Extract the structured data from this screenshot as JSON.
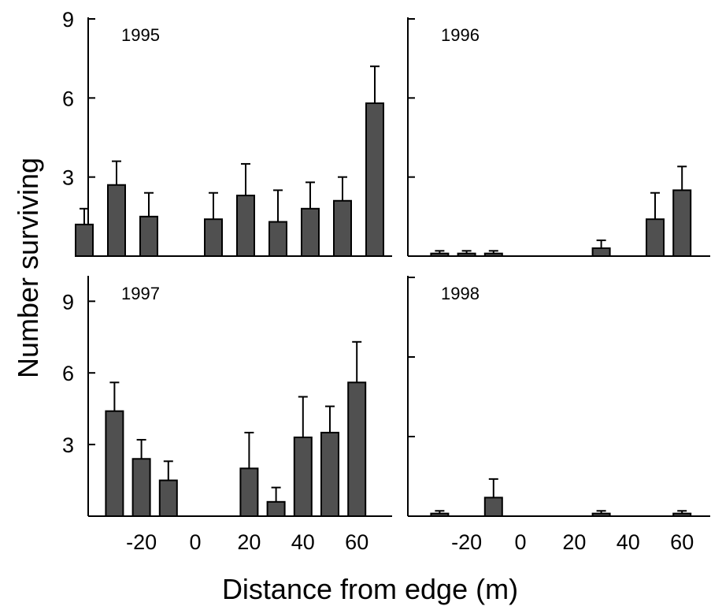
{
  "figure": {
    "ylabel": "Number surviving",
    "xlabel": "Distance from edge (m)"
  },
  "chart_data": [
    {
      "type": "bar",
      "title": "1995",
      "x": [
        -30,
        -20,
        -10,
        10,
        20,
        30,
        40,
        50,
        60
      ],
      "values": [
        1.2,
        2.7,
        1.5,
        1.4,
        2.3,
        1.3,
        1.8,
        2.1,
        5.8
      ],
      "errors": [
        0.6,
        0.9,
        0.9,
        1.0,
        1.2,
        1.2,
        1.0,
        0.9,
        1.4
      ],
      "xlim": [
        -35,
        65
      ],
      "ylim": [
        0,
        9
      ],
      "yticks": [
        3,
        6,
        9
      ],
      "xticks": [
        -20,
        0,
        20,
        40,
        60
      ]
    },
    {
      "type": "bar",
      "title": "1996",
      "x": [
        -30,
        -20,
        -10,
        30,
        50,
        60
      ],
      "values": [
        0.1,
        0.1,
        0.1,
        0.3,
        1.4,
        2.5
      ],
      "errors": [
        0.1,
        0.1,
        0.1,
        0.3,
        1.0,
        0.9
      ],
      "xlim": [
        -35,
        65
      ],
      "ylim": [
        0,
        9
      ],
      "yticks": [
        3,
        6,
        9
      ],
      "xticks": [
        -20,
        0,
        20,
        40,
        60
      ]
    },
    {
      "type": "bar",
      "title": "1997",
      "x": [
        -30,
        -20,
        -10,
        20,
        30,
        40,
        50,
        60
      ],
      "values": [
        4.4,
        2.4,
        1.5,
        2.0,
        0.6,
        3.3,
        3.5,
        5.6
      ],
      "errors": [
        1.2,
        0.8,
        0.8,
        1.5,
        0.6,
        1.7,
        1.1,
        1.7
      ],
      "xlim": [
        -35,
        65
      ],
      "ylim": [
        0,
        10
      ],
      "yticks": [
        3,
        6,
        9
      ],
      "xticks": [
        -20,
        0,
        20,
        40,
        60
      ]
    },
    {
      "type": "bar",
      "title": "1998",
      "x": [
        -30,
        -10,
        30,
        60
      ],
      "values": [
        0.1,
        0.7,
        0.1,
        0.1
      ],
      "errors": [
        0.1,
        0.7,
        0.1,
        0.1
      ],
      "xlim": [
        -35,
        65
      ],
      "ylim": [
        0,
        9
      ],
      "yticks": [
        3,
        6,
        9
      ],
      "xticks": [
        -20,
        0,
        20,
        40,
        60
      ]
    }
  ]
}
